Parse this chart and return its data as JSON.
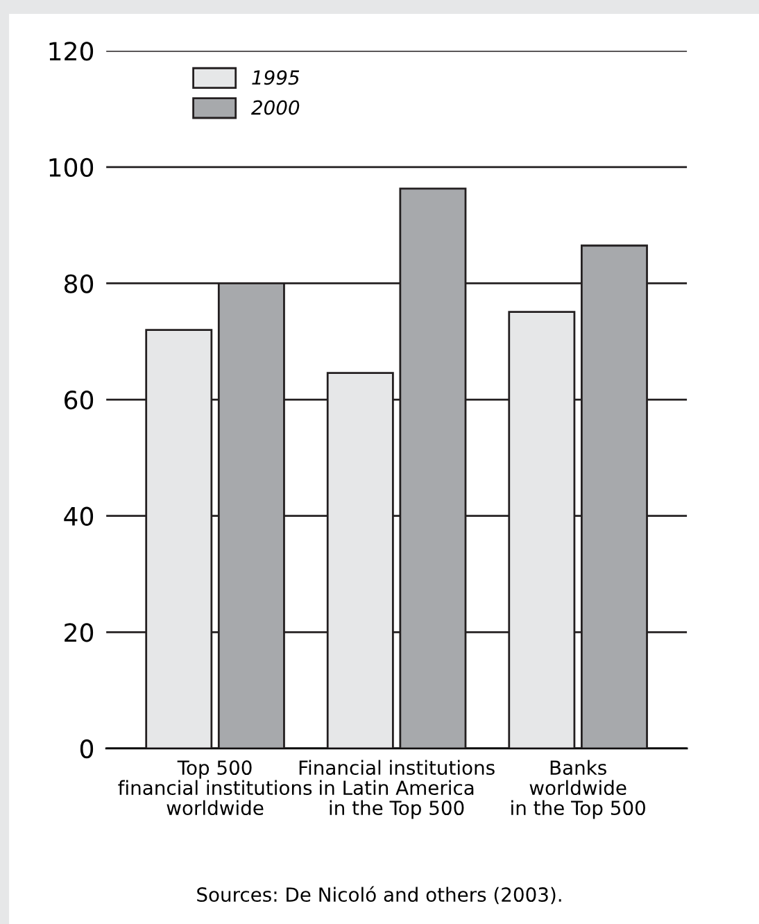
{
  "chart_data": {
    "type": "bar",
    "categories": [
      "Top 500\nfinancial institutions\nworldwide",
      "Financial institutions\nin Latin America\nin the Top 500",
      "Banks\nworldwide\nin the Top 500"
    ],
    "series": [
      {
        "name": "1995",
        "color": "#e6e7e8",
        "values": [
          72,
          64.6,
          75.1
        ]
      },
      {
        "name": "2000",
        "color": "#a7a9ac",
        "values": [
          80,
          96.3,
          86.5
        ]
      }
    ],
    "ylim": [
      0,
      120
    ],
    "yticks": [
      0,
      20,
      40,
      60,
      80,
      100,
      120
    ],
    "grid": "y",
    "legend": "top left",
    "annotations": [
      "Sources: De Nicoló and others (2003)."
    ]
  }
}
